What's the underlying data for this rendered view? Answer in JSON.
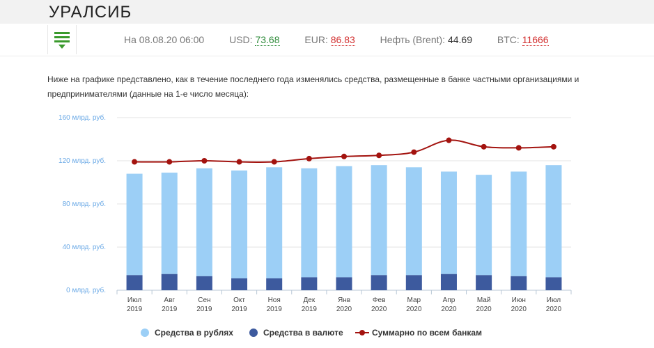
{
  "header": {
    "bank_name": "УРАЛСИБ",
    "menu_icon": "hamburger-icon"
  },
  "rates": {
    "datetime": "На 08.08.20 06:00",
    "usd_label": "USD:",
    "usd_value": "73.68",
    "eur_label": "EUR:",
    "eur_value": "86.83",
    "oil_label": "Нефть (Brent):",
    "oil_value": "44.69",
    "btc_label": "BTC:",
    "btc_value": "11666",
    "colors": {
      "up": "#2e8b3a",
      "down": "#d22f2f"
    }
  },
  "description": "Ниже на графике представлено, как в течение последнего года изменялись средства, размещенные в банке частными организациями и предпринимателями (данные на 1-е число месяца):",
  "chart_data": {
    "type": "bar",
    "stacked": true,
    "categories": [
      [
        "Июл",
        "2019"
      ],
      [
        "Авг",
        "2019"
      ],
      [
        "Сен",
        "2019"
      ],
      [
        "Окт",
        "2019"
      ],
      [
        "Ноя",
        "2019"
      ],
      [
        "Дек",
        "2019"
      ],
      [
        "Янв",
        "2020"
      ],
      [
        "Фев",
        "2020"
      ],
      [
        "Мар",
        "2020"
      ],
      [
        "Апр",
        "2020"
      ],
      [
        "Май",
        "2020"
      ],
      [
        "Июн",
        "2020"
      ],
      [
        "Июл",
        "2020"
      ]
    ],
    "series": [
      {
        "name": "Средства в рублях",
        "kind": "bar",
        "color": "#9ccff6",
        "values": [
          94,
          94,
          100,
          100,
          103,
          101,
          103,
          102,
          100,
          95,
          93,
          97,
          104
        ]
      },
      {
        "name": "Средства в валюте",
        "kind": "bar",
        "color": "#3d5a9e",
        "values": [
          14,
          15,
          13,
          11,
          11,
          12,
          12,
          14,
          14,
          15,
          14,
          13,
          12
        ]
      },
      {
        "name": "Суммарно по всем банкам",
        "kind": "line",
        "color": "#a3130f",
        "values": [
          119,
          119,
          120,
          119,
          119,
          122,
          124,
          125,
          128,
          139,
          133,
          132,
          133
        ]
      }
    ],
    "y_ticks": [
      {
        "value": 0,
        "label": "0 млрд. руб."
      },
      {
        "value": 40,
        "label": "40 млрд. руб."
      },
      {
        "value": 80,
        "label": "80 млрд. руб."
      },
      {
        "value": 120,
        "label": "120 млрд. руб."
      },
      {
        "value": 160,
        "label": "160 млрд. руб."
      }
    ],
    "ylim": [
      0,
      160
    ],
    "grid": true,
    "legend_position": "bottom-left"
  }
}
